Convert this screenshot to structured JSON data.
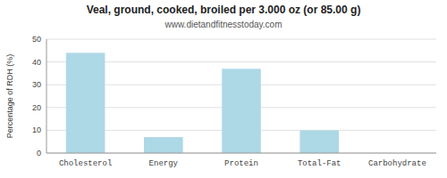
{
  "chart_data": {
    "type": "bar",
    "title": "Veal, ground, cooked, broiled per 3.000 oz (or 85.00 g)",
    "subtitle": "www.dietandfitnesstoday.com",
    "categories": [
      "Cholesterol",
      "Energy",
      "Protein",
      "Total-Fat",
      "Carbohydrate"
    ],
    "values": [
      44,
      7,
      37,
      10,
      0
    ],
    "color": "#add8e6",
    "ylabel": "Percentage of RDH (%)",
    "ylim": [
      0,
      50
    ],
    "yticks": [
      0,
      10,
      20,
      30,
      40,
      50
    ],
    "grid": true
  }
}
